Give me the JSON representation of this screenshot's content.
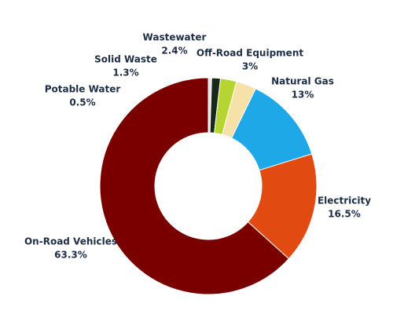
{
  "chart_data": {
    "type": "donut",
    "categories": [
      "Potable Water",
      "Solid Waste",
      "Wastewater",
      "Off-Road Equipment",
      "Natural Gas",
      "Electricity",
      "On-Road Vehicles"
    ],
    "values": [
      0.5,
      1.3,
      2.4,
      3,
      13,
      16.5,
      63.3
    ],
    "value_labels": [
      "0.5%",
      "1.3%",
      "2.4%",
      "3%",
      "13%",
      "16.5%",
      "63.3%"
    ],
    "colors": [
      "#e6e6e6",
      "#16291a",
      "#b6d432",
      "#f6e2a8",
      "#1fa8e8",
      "#e14b12",
      "#7a0000"
    ]
  }
}
